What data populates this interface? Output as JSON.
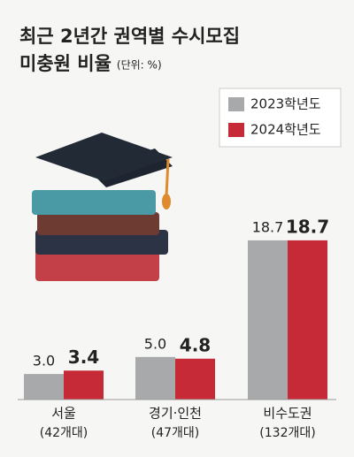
{
  "chart_data": {
    "type": "bar",
    "title": [
      "최근 2년간 권역별 수시모집",
      "미충원 비율"
    ],
    "unit": "(단위: %)",
    "categories": [
      "서울",
      "경기·인천",
      "비수도권"
    ],
    "category_notes": [
      "(42개대)",
      "(47개대)",
      "(132개대)"
    ],
    "series": [
      {
        "name": "2023학년도",
        "color": "#a8a9ab",
        "values": [
          3.0,
          5.0,
          18.7
        ],
        "value_labels": [
          "3.0",
          "5.0",
          "18.7"
        ]
      },
      {
        "name": "2024학년도",
        "color": "#c62a37",
        "values": [
          3.4,
          4.8,
          18.7
        ],
        "value_labels": [
          "3.4",
          "4.8",
          "18.7"
        ]
      }
    ],
    "legend": "top-right"
  }
}
